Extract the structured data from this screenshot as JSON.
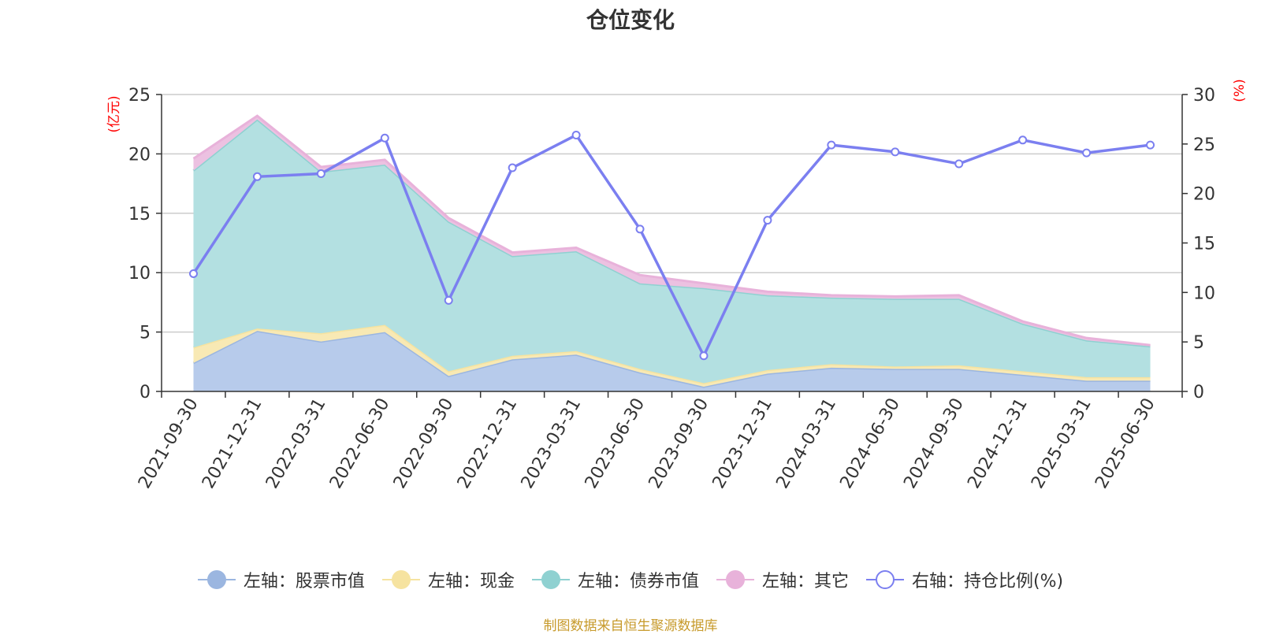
{
  "title": "仓位变化",
  "source": "制图数据来自恒生聚源数据库",
  "chart_data": {
    "type": "area",
    "stacked": true,
    "categories": [
      "2021-09-30",
      "2021-12-31",
      "2022-03-31",
      "2022-06-30",
      "2022-09-30",
      "2022-12-31",
      "2023-03-31",
      "2023-06-30",
      "2023-09-30",
      "2023-12-31",
      "2024-03-31",
      "2024-06-30",
      "2024-09-30",
      "2024-12-31",
      "2025-03-31",
      "2025-06-30"
    ],
    "left_axis": {
      "label": "(亿元)",
      "ylim": [
        0,
        25
      ],
      "ticks": [
        "0",
        "5",
        "10",
        "15",
        "20",
        "25"
      ]
    },
    "right_axis": {
      "label": "(%)",
      "ylim": [
        0,
        30
      ],
      "ticks": [
        "0",
        "5",
        "10",
        "15",
        "20",
        "25",
        "30"
      ]
    },
    "grid": true,
    "series": [
      {
        "name": "左轴：股票市值",
        "axis": "left",
        "kind": "area",
        "color": "#9bb6e0",
        "fill": "#b7cbeb",
        "values": [
          2.4,
          5.1,
          4.2,
          5.0,
          1.3,
          2.7,
          3.1,
          1.6,
          0.4,
          1.5,
          2.0,
          1.9,
          1.9,
          1.4,
          0.9,
          0.9
        ]
      },
      {
        "name": "左轴：现金",
        "axis": "left",
        "kind": "area",
        "color": "#f6e3a0",
        "fill": "#f8e9b4",
        "values": [
          1.3,
          0.2,
          0.7,
          0.6,
          0.4,
          0.3,
          0.3,
          0.3,
          0.3,
          0.3,
          0.3,
          0.2,
          0.3,
          0.3,
          0.3,
          0.3
        ]
      },
      {
        "name": "左轴：债券市值",
        "axis": "left",
        "kind": "area",
        "color": "#8fd1d1",
        "fill": "#b3e0e1",
        "values": [
          14.9,
          17.6,
          13.6,
          13.5,
          12.6,
          8.4,
          8.4,
          7.2,
          8.0,
          6.3,
          5.6,
          5.7,
          5.6,
          4.0,
          3.1,
          2.6
        ]
      },
      {
        "name": "左轴：其它",
        "axis": "left",
        "kind": "area",
        "color": "#e8b2da",
        "fill": "#ecc1e1",
        "values": [
          1.0,
          0.3,
          0.4,
          0.4,
          0.3,
          0.3,
          0.3,
          0.7,
          0.4,
          0.3,
          0.2,
          0.2,
          0.3,
          0.2,
          0.2,
          0.1
        ]
      },
      {
        "name": "右轴：持仓比例(%)",
        "axis": "right",
        "kind": "line",
        "color": "#7b7ff0",
        "values": [
          11.9,
          21.7,
          22.0,
          25.6,
          9.2,
          22.6,
          25.9,
          16.4,
          3.6,
          17.3,
          24.9,
          24.2,
          23.0,
          25.4,
          24.1,
          24.9
        ]
      }
    ]
  }
}
